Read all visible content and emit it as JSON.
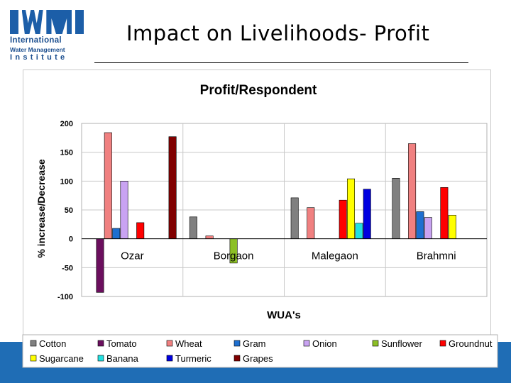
{
  "logo": {
    "wordmark": "IWMI",
    "line1": "International",
    "line2": "Water Management",
    "line3": "Institute"
  },
  "slide": {
    "title": "Impact on Livelihoods- Profit"
  },
  "colors": {
    "footer_band": "#1f6db5",
    "logo": "#1c5ea8"
  },
  "chart_data": {
    "type": "bar",
    "title": "Profit/Respondent",
    "xlabel": "WUA's",
    "ylabel": "% increase/Decrease",
    "ylim": [
      -100,
      200
    ],
    "yticks": [
      200,
      150,
      100,
      50,
      0,
      -50,
      -100
    ],
    "grid": true,
    "legend_position": "bottom",
    "categories": [
      "Ozar",
      "Borgaon",
      "Malegaon",
      "Brahmni"
    ],
    "series": [
      {
        "name": "Cotton",
        "color": "#808080",
        "values": [
          null,
          38,
          71,
          105
        ]
      },
      {
        "name": "Tomato",
        "color": "#6b0f5e",
        "values": [
          -93,
          null,
          null,
          null
        ]
      },
      {
        "name": "Wheat",
        "color": "#f08080",
        "values": [
          184,
          5,
          54,
          165
        ]
      },
      {
        "name": "Gram",
        "color": "#1e6fd0",
        "values": [
          18,
          null,
          null,
          47
        ]
      },
      {
        "name": "Onion",
        "color": "#c9a3f2",
        "values": [
          100,
          null,
          null,
          37
        ]
      },
      {
        "name": "Sunflower",
        "color": "#8cbf26",
        "values": [
          null,
          -42,
          null,
          null
        ]
      },
      {
        "name": "Groundnut",
        "color": "#ff0000",
        "values": [
          28,
          null,
          67,
          89
        ]
      },
      {
        "name": "Sugarcane",
        "color": "#ffff00",
        "values": [
          null,
          null,
          104,
          41
        ]
      },
      {
        "name": "Banana",
        "color": "#22e0e0",
        "values": [
          null,
          null,
          27,
          null
        ]
      },
      {
        "name": "Turmeric",
        "color": "#0000e0",
        "values": [
          null,
          null,
          86,
          null
        ]
      },
      {
        "name": "Grapes",
        "color": "#800000",
        "values": [
          177,
          null,
          null,
          null
        ]
      }
    ]
  }
}
